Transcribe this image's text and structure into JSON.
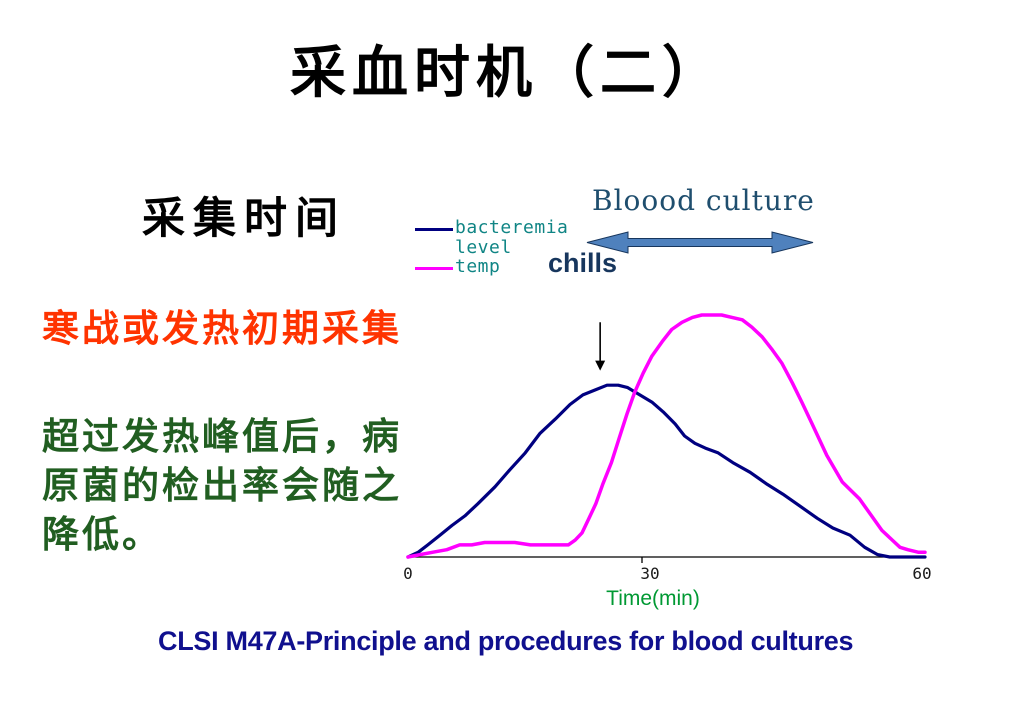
{
  "slide": {
    "title": "采血时机（二）",
    "left_panel": {
      "heading": "采集时间",
      "note_red": "寒战或发热初期采集",
      "note_green": "超过发热峰值后，病原菌的检出率会随之降低。"
    },
    "footer": "CLSI M47A-Principle and procedures for blood cultures",
    "colors": {
      "title": "#000000",
      "note_red": "#FF3300",
      "note_green": "#215E21",
      "legend_text": "#108585",
      "blood_culture_label": "#1F4E6E",
      "chills_label": "#17365D",
      "double_arrow_fill": "#4F81BD",
      "double_arrow_outline": "#17365D",
      "time_label": "#009933",
      "footer_text": "#10108E",
      "axis": "#000000"
    }
  },
  "chart_data": {
    "type": "line",
    "xlabel": "Time(min)",
    "ylabel": "",
    "x_range": [
      0,
      60
    ],
    "y_range_relative": [
      0,
      1
    ],
    "x_ticks": [
      "0",
      "30",
      "60"
    ],
    "grid": false,
    "legend_position": "top-left",
    "blood_culture": {
      "label": "Bloood culture",
      "arrow_span_t": [
        21,
        47
      ]
    },
    "annotation": {
      "label": "chills",
      "t": 22.3,
      "v_top": 0.97,
      "v_bottom": 0.77
    },
    "series": [
      {
        "name": "bacteremia level",
        "color": "#000080",
        "points": [
          [
            0,
            0
          ],
          [
            1.2,
            0.02
          ],
          [
            2.3,
            0.05
          ],
          [
            3.7,
            0.09
          ],
          [
            5.1,
            0.13
          ],
          [
            6.6,
            0.17
          ],
          [
            8.1,
            0.22
          ],
          [
            10.1,
            0.29
          ],
          [
            11.8,
            0.36
          ],
          [
            13.6,
            0.43
          ],
          [
            15.3,
            0.51
          ],
          [
            17.1,
            0.57
          ],
          [
            18.8,
            0.63
          ],
          [
            20.3,
            0.67
          ],
          [
            21.7,
            0.69
          ],
          [
            23.1,
            0.71
          ],
          [
            24.4,
            0.71
          ],
          [
            25.5,
            0.7
          ],
          [
            26.9,
            0.67
          ],
          [
            28.3,
            0.64
          ],
          [
            29.6,
            0.6
          ],
          [
            31.0,
            0.55
          ],
          [
            32.1,
            0.5
          ],
          [
            33.3,
            0.47
          ],
          [
            34.5,
            0.45
          ],
          [
            36.0,
            0.43
          ],
          [
            37.7,
            0.39
          ],
          [
            39.7,
            0.35
          ],
          [
            41.7,
            0.3
          ],
          [
            43.5,
            0.26
          ],
          [
            45.5,
            0.21
          ],
          [
            47.5,
            0.16
          ],
          [
            49.3,
            0.12
          ],
          [
            51.3,
            0.09
          ],
          [
            53.0,
            0.04
          ],
          [
            54.5,
            0.01
          ],
          [
            55.9,
            0
          ],
          [
            60,
            0
          ]
        ]
      },
      {
        "name": "temp",
        "color": "#FF00FF",
        "points": [
          [
            0,
            0
          ],
          [
            1.4,
            0.01
          ],
          [
            2.9,
            0.02
          ],
          [
            4.5,
            0.03
          ],
          [
            6,
            0.05
          ],
          [
            7.4,
            0.05
          ],
          [
            8.9,
            0.06
          ],
          [
            10.7,
            0.06
          ],
          [
            12.4,
            0.06
          ],
          [
            14.2,
            0.05
          ],
          [
            15.6,
            0.05
          ],
          [
            17.6,
            0.05
          ],
          [
            18.6,
            0.05
          ],
          [
            19.4,
            0.07
          ],
          [
            20.2,
            0.1
          ],
          [
            21,
            0.16
          ],
          [
            21.8,
            0.22
          ],
          [
            22.6,
            0.3
          ],
          [
            23.6,
            0.39
          ],
          [
            24.5,
            0.49
          ],
          [
            25.4,
            0.59
          ],
          [
            26.3,
            0.68
          ],
          [
            27.3,
            0.76
          ],
          [
            28.3,
            0.83
          ],
          [
            29.5,
            0.89
          ],
          [
            30.6,
            0.94
          ],
          [
            31.8,
            0.97
          ],
          [
            33,
            0.99
          ],
          [
            34.1,
            1.0
          ],
          [
            35.3,
            1.0
          ],
          [
            36.4,
            1.0
          ],
          [
            37.6,
            0.99
          ],
          [
            38.8,
            0.98
          ],
          [
            39.9,
            0.95
          ],
          [
            41.1,
            0.91
          ],
          [
            42.2,
            0.86
          ],
          [
            43.4,
            0.8
          ],
          [
            44.6,
            0.72
          ],
          [
            45.7,
            0.64
          ],
          [
            46.9,
            0.55
          ],
          [
            48.6,
            0.42
          ],
          [
            50.4,
            0.31
          ],
          [
            52.4,
            0.24
          ],
          [
            53.8,
            0.17
          ],
          [
            55,
            0.11
          ],
          [
            56.2,
            0.07
          ],
          [
            57.1,
            0.04
          ],
          [
            58,
            0.03
          ],
          [
            59.2,
            0.02
          ],
          [
            60,
            0.02
          ]
        ]
      }
    ]
  }
}
